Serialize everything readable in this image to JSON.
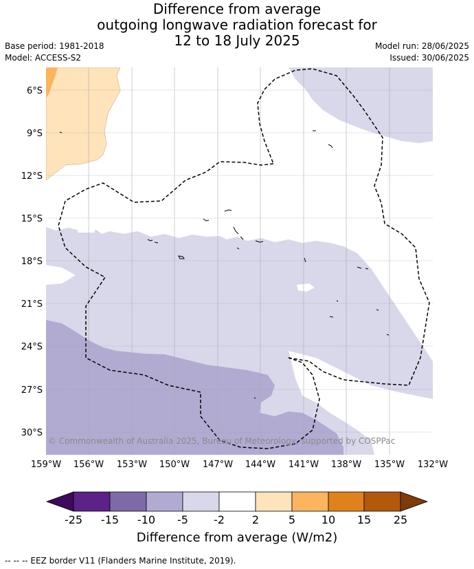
{
  "title": {
    "line1": "Difference from average",
    "line2": "outgoing longwave radiation forecast for",
    "line3": "12 to 18 July 2025"
  },
  "meta_left": {
    "base_period": "Base period: 1981-2018",
    "model": "Model: ACCESS-S2"
  },
  "meta_right": {
    "model_run": "Model run: 28/06/2025",
    "issued": "Issued: 30/06/2025"
  },
  "copyright": "© Commonwealth of Australia 2025, Bureau of Meteorology, supported by COSPPac",
  "axes": {
    "lat_labels": [
      "6°S",
      "9°S",
      "12°S",
      "15°S",
      "18°S",
      "21°S",
      "24°S",
      "27°S",
      "30°S"
    ],
    "lon_labels": [
      "159°W",
      "156°W",
      "153°W",
      "150°W",
      "147°W",
      "144°W",
      "141°W",
      "138°W",
      "135°W",
      "132°W"
    ]
  },
  "colorbar": {
    "title": "Difference from average (W/m2)",
    "ticks": [
      "-25",
      "-15",
      "-10",
      "-5",
      "-2",
      "2",
      "5",
      "10",
      "15",
      "25"
    ],
    "colors": [
      "#5b2288",
      "#7e6aa8",
      "#b1abd2",
      "#d8d8ea",
      "#ffffff",
      "#fee3bb",
      "#fbb55e",
      "#e0821b",
      "#b3590b"
    ],
    "under_color": "#3e0a5e",
    "over_color": "#7f3b08"
  },
  "footnote": "-- -- -- EEZ border V11 (Flanders Marine Institute, 2019)."
}
